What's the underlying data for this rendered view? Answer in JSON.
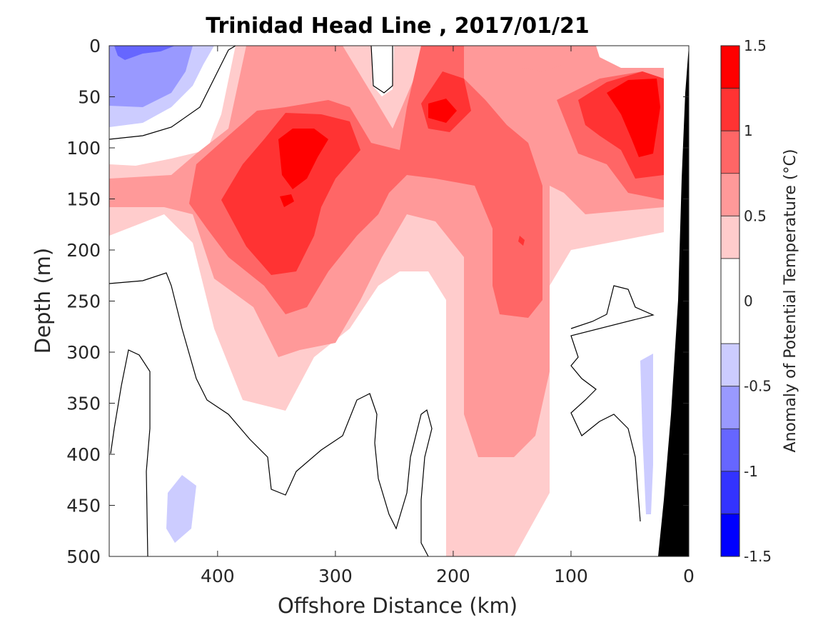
{
  "chart_data": {
    "type": "heatmap",
    "title": "Trinidad Head Line , 2017/01/21",
    "xlabel": "Offshore Distance (km)",
    "ylabel": "Depth (m)",
    "xlim": [
      492,
      0
    ],
    "ylim": [
      0,
      500
    ],
    "x_reversed": true,
    "y_reversed": true,
    "xticks": [
      400,
      300,
      200,
      100,
      0
    ],
    "yticks": [
      0,
      50,
      100,
      150,
      200,
      250,
      300,
      350,
      400,
      450,
      500
    ],
    "colorbar": {
      "label": "Anomaly of Potential Temperature (°C)",
      "min": -1.5,
      "max": 1.5,
      "ticks": [
        1.5,
        1,
        0.5,
        0,
        -0.5,
        -1,
        -1.5
      ],
      "tick_labels": [
        "1.5",
        "1",
        "0.5",
        "0",
        "-0.5",
        "-1",
        "-1.5"
      ],
      "levels": [
        {
          "range": [
            1.25,
            1.5
          ],
          "color": "#ff0000"
        },
        {
          "range": [
            1.0,
            1.25
          ],
          "color": "#ff3333"
        },
        {
          "range": [
            0.75,
            1.0
          ],
          "color": "#ff6666"
        },
        {
          "range": [
            0.5,
            0.75
          ],
          "color": "#ff9999"
        },
        {
          "range": [
            0.25,
            0.5
          ],
          "color": "#ffcccc"
        },
        {
          "range": [
            -0.25,
            0.25
          ],
          "color": "#ffffff"
        },
        {
          "range": [
            -0.5,
            -0.25
          ],
          "color": "#ccccff"
        },
        {
          "range": [
            -0.75,
            -0.5
          ],
          "color": "#9999ff"
        },
        {
          "range": [
            -1.0,
            -0.75
          ],
          "color": "#6666ff"
        },
        {
          "range": [
            -1.25,
            -1.0
          ],
          "color": "#3333ff"
        },
        {
          "range": [
            -1.5,
            -1.25
          ],
          "color": "#0000ff"
        }
      ]
    },
    "anomaly_cores": [
      {
        "x_km": 333,
        "depth_m": 120,
        "value": 1.3
      },
      {
        "x_km": 212,
        "depth_m": 65,
        "value": 1.3
      },
      {
        "x_km": 45,
        "depth_m": 75,
        "value": 1.3
      },
      {
        "x_km": 145,
        "depth_m": 200,
        "value": 0.9
      },
      {
        "x_km": 460,
        "depth_m": 20,
        "value": -0.8
      },
      {
        "x_km": 440,
        "depth_m": 460,
        "value": -0.4
      }
    ],
    "seafloor_color": "#000000"
  }
}
